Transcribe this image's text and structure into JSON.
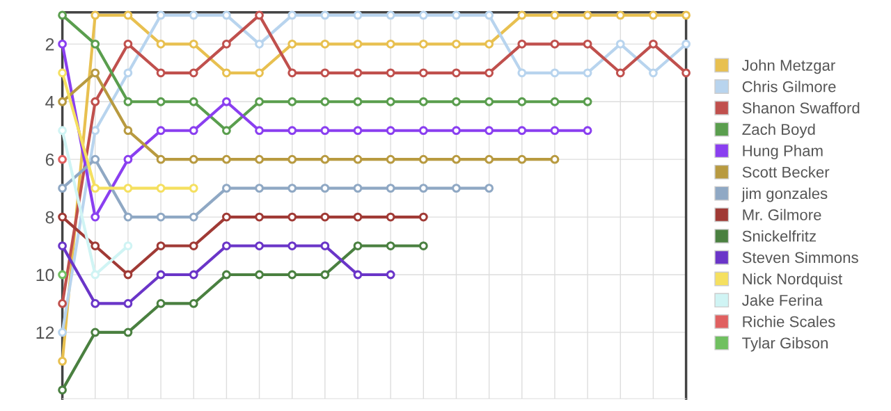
{
  "chart_data": {
    "type": "line",
    "categories": [
      null,
      null,
      null,
      null,
      null,
      null,
      null,
      null,
      null,
      null,
      null,
      null,
      null,
      null,
      null,
      null,
      null,
      null,
      null,
      null
    ],
    "ylim": [
      14.3,
      0.9
    ],
    "yticks": [
      2,
      4,
      6,
      8,
      10,
      12
    ],
    "tick_labels": "y",
    "grid": true,
    "legend": "right",
    "marker": "circle",
    "line_style": "solid",
    "series": [
      {
        "name": "John Metzgar",
        "color": "#e8c050",
        "values": [
          13,
          1,
          1,
          2,
          2,
          3,
          3,
          2,
          2,
          2,
          2,
          2,
          2,
          2,
          1,
          1,
          1,
          1,
          1,
          1
        ]
      },
      {
        "name": "Chris Gilmore",
        "color": "#b8d4ee",
        "values": [
          12,
          5,
          3,
          1,
          1,
          1,
          2,
          1,
          1,
          1,
          1,
          1,
          1,
          1,
          3,
          3,
          3,
          2,
          3,
          2
        ]
      },
      {
        "name": "Shanon Swafford",
        "color": "#c0504d",
        "values": [
          11,
          4,
          2,
          3,
          3,
          2,
          1,
          3,
          3,
          3,
          3,
          3,
          3,
          3,
          2,
          2,
          2,
          3,
          2,
          3
        ]
      },
      {
        "name": "Zach Boyd",
        "color": "#5a9e4e",
        "values": [
          1,
          2,
          4,
          4,
          4,
          5,
          4,
          4,
          4,
          4,
          4,
          4,
          4,
          4,
          4,
          4,
          4,
          null,
          null,
          null
        ]
      },
      {
        "name": "Hung Pham",
        "color": "#8a3ff0",
        "values": [
          2,
          8,
          6,
          5,
          5,
          4,
          5,
          5,
          5,
          5,
          5,
          5,
          5,
          5,
          5,
          5,
          5,
          null,
          null,
          null
        ]
      },
      {
        "name": "Scott Becker",
        "color": "#b89a40",
        "values": [
          4,
          3,
          5,
          6,
          6,
          6,
          6,
          6,
          6,
          6,
          6,
          6,
          6,
          6,
          6,
          6,
          null,
          null,
          null,
          null
        ]
      },
      {
        "name": "jim gonzales",
        "color": "#8fa8c4",
        "values": [
          7,
          6,
          8,
          8,
          8,
          7,
          7,
          7,
          7,
          7,
          7,
          7,
          7,
          7,
          null,
          null,
          null,
          null,
          null,
          null
        ]
      },
      {
        "name": "Mr. Gilmore",
        "color": "#a03a35",
        "values": [
          8,
          9,
          10,
          9,
          9,
          8,
          8,
          8,
          8,
          8,
          8,
          8,
          null,
          null,
          null,
          null,
          null,
          null,
          null,
          null
        ]
      },
      {
        "name": "Snickelfritz",
        "color": "#4a8040",
        "values": [
          14,
          12,
          12,
          11,
          11,
          10,
          10,
          10,
          10,
          9,
          9,
          9,
          null,
          null,
          null,
          null,
          null,
          null,
          null,
          null
        ]
      },
      {
        "name": "Steven Simmons",
        "color": "#6a35c8",
        "values": [
          9,
          11,
          11,
          10,
          10,
          9,
          9,
          9,
          9,
          10,
          10,
          null,
          null,
          null,
          null,
          null,
          null,
          null,
          null,
          null
        ]
      },
      {
        "name": "Nick Nordquist",
        "color": "#f5e060",
        "values": [
          3,
          7,
          7,
          7,
          7,
          null,
          null,
          null,
          null,
          null,
          null,
          null,
          null,
          null,
          null,
          null,
          null,
          null,
          null,
          null
        ]
      },
      {
        "name": "Jake Ferina",
        "color": "#d0f4f4",
        "values": [
          5,
          10,
          9,
          null,
          null,
          null,
          null,
          null,
          null,
          null,
          null,
          null,
          null,
          null,
          null,
          null,
          null,
          null,
          null,
          null
        ]
      },
      {
        "name": "Richie Scales",
        "color": "#e06060",
        "values": [
          6,
          null,
          null,
          null,
          null,
          null,
          null,
          null,
          null,
          null,
          null,
          null,
          null,
          null,
          null,
          null,
          null,
          null,
          null,
          null
        ]
      },
      {
        "name": "Tylar Gibson",
        "color": "#70c060",
        "values": [
          10,
          null,
          null,
          null,
          null,
          null,
          null,
          null,
          null,
          null,
          null,
          null,
          null,
          null,
          null,
          null,
          null,
          null,
          null,
          null
        ]
      }
    ]
  }
}
